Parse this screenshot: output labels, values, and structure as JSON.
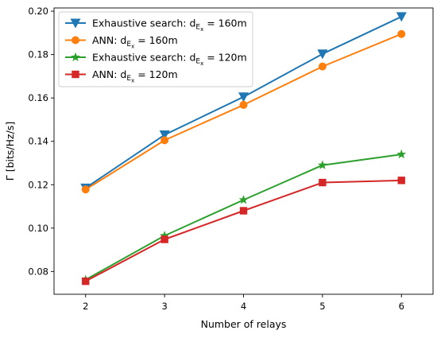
{
  "chart_data": {
    "type": "line",
    "xlabel": "Number of relays",
    "ylabel": "Γ [bits/Hz/s]",
    "x": [
      2,
      3,
      4,
      5,
      6
    ],
    "xlim": [
      1.6,
      6.4
    ],
    "ylim": [
      0.0695,
      0.2015
    ],
    "xticks": [
      "2",
      "3",
      "4",
      "5",
      "6"
    ],
    "yticks": [
      "0.08",
      "0.10",
      "0.12",
      "0.14",
      "0.16",
      "0.18",
      "0.20"
    ],
    "legend_position": "upper-left",
    "grid": false,
    "series": [
      {
        "name_prefix": "Exhaustive search: d",
        "name_subscript": "E",
        "name_subsub": "x",
        "name_suffix": " = 160m",
        "color": "#1f77b4",
        "marker": "triangle-down",
        "values": [
          0.1185,
          0.143,
          0.1605,
          0.1803,
          0.1975
        ]
      },
      {
        "name_prefix": "ANN: d",
        "name_subscript": "E",
        "name_subsub": "x",
        "name_suffix": " = 160m",
        "color": "#ff7f0e",
        "marker": "circle",
        "values": [
          0.1178,
          0.1405,
          0.1568,
          0.1745,
          0.1895
        ]
      },
      {
        "name_prefix": "Exhaustive search: d",
        "name_subscript": "E",
        "name_subsub": "x",
        "name_suffix": " = 120m",
        "color": "#2ca02c",
        "marker": "star",
        "values": [
          0.0762,
          0.0965,
          0.113,
          0.129,
          0.134
        ]
      },
      {
        "name_prefix": "ANN: d",
        "name_subscript": "E",
        "name_subsub": "x",
        "name_suffix": " = 120m",
        "color": "#d62728",
        "marker": "square",
        "values": [
          0.0755,
          0.0948,
          0.108,
          0.121,
          0.122
        ]
      }
    ]
  }
}
